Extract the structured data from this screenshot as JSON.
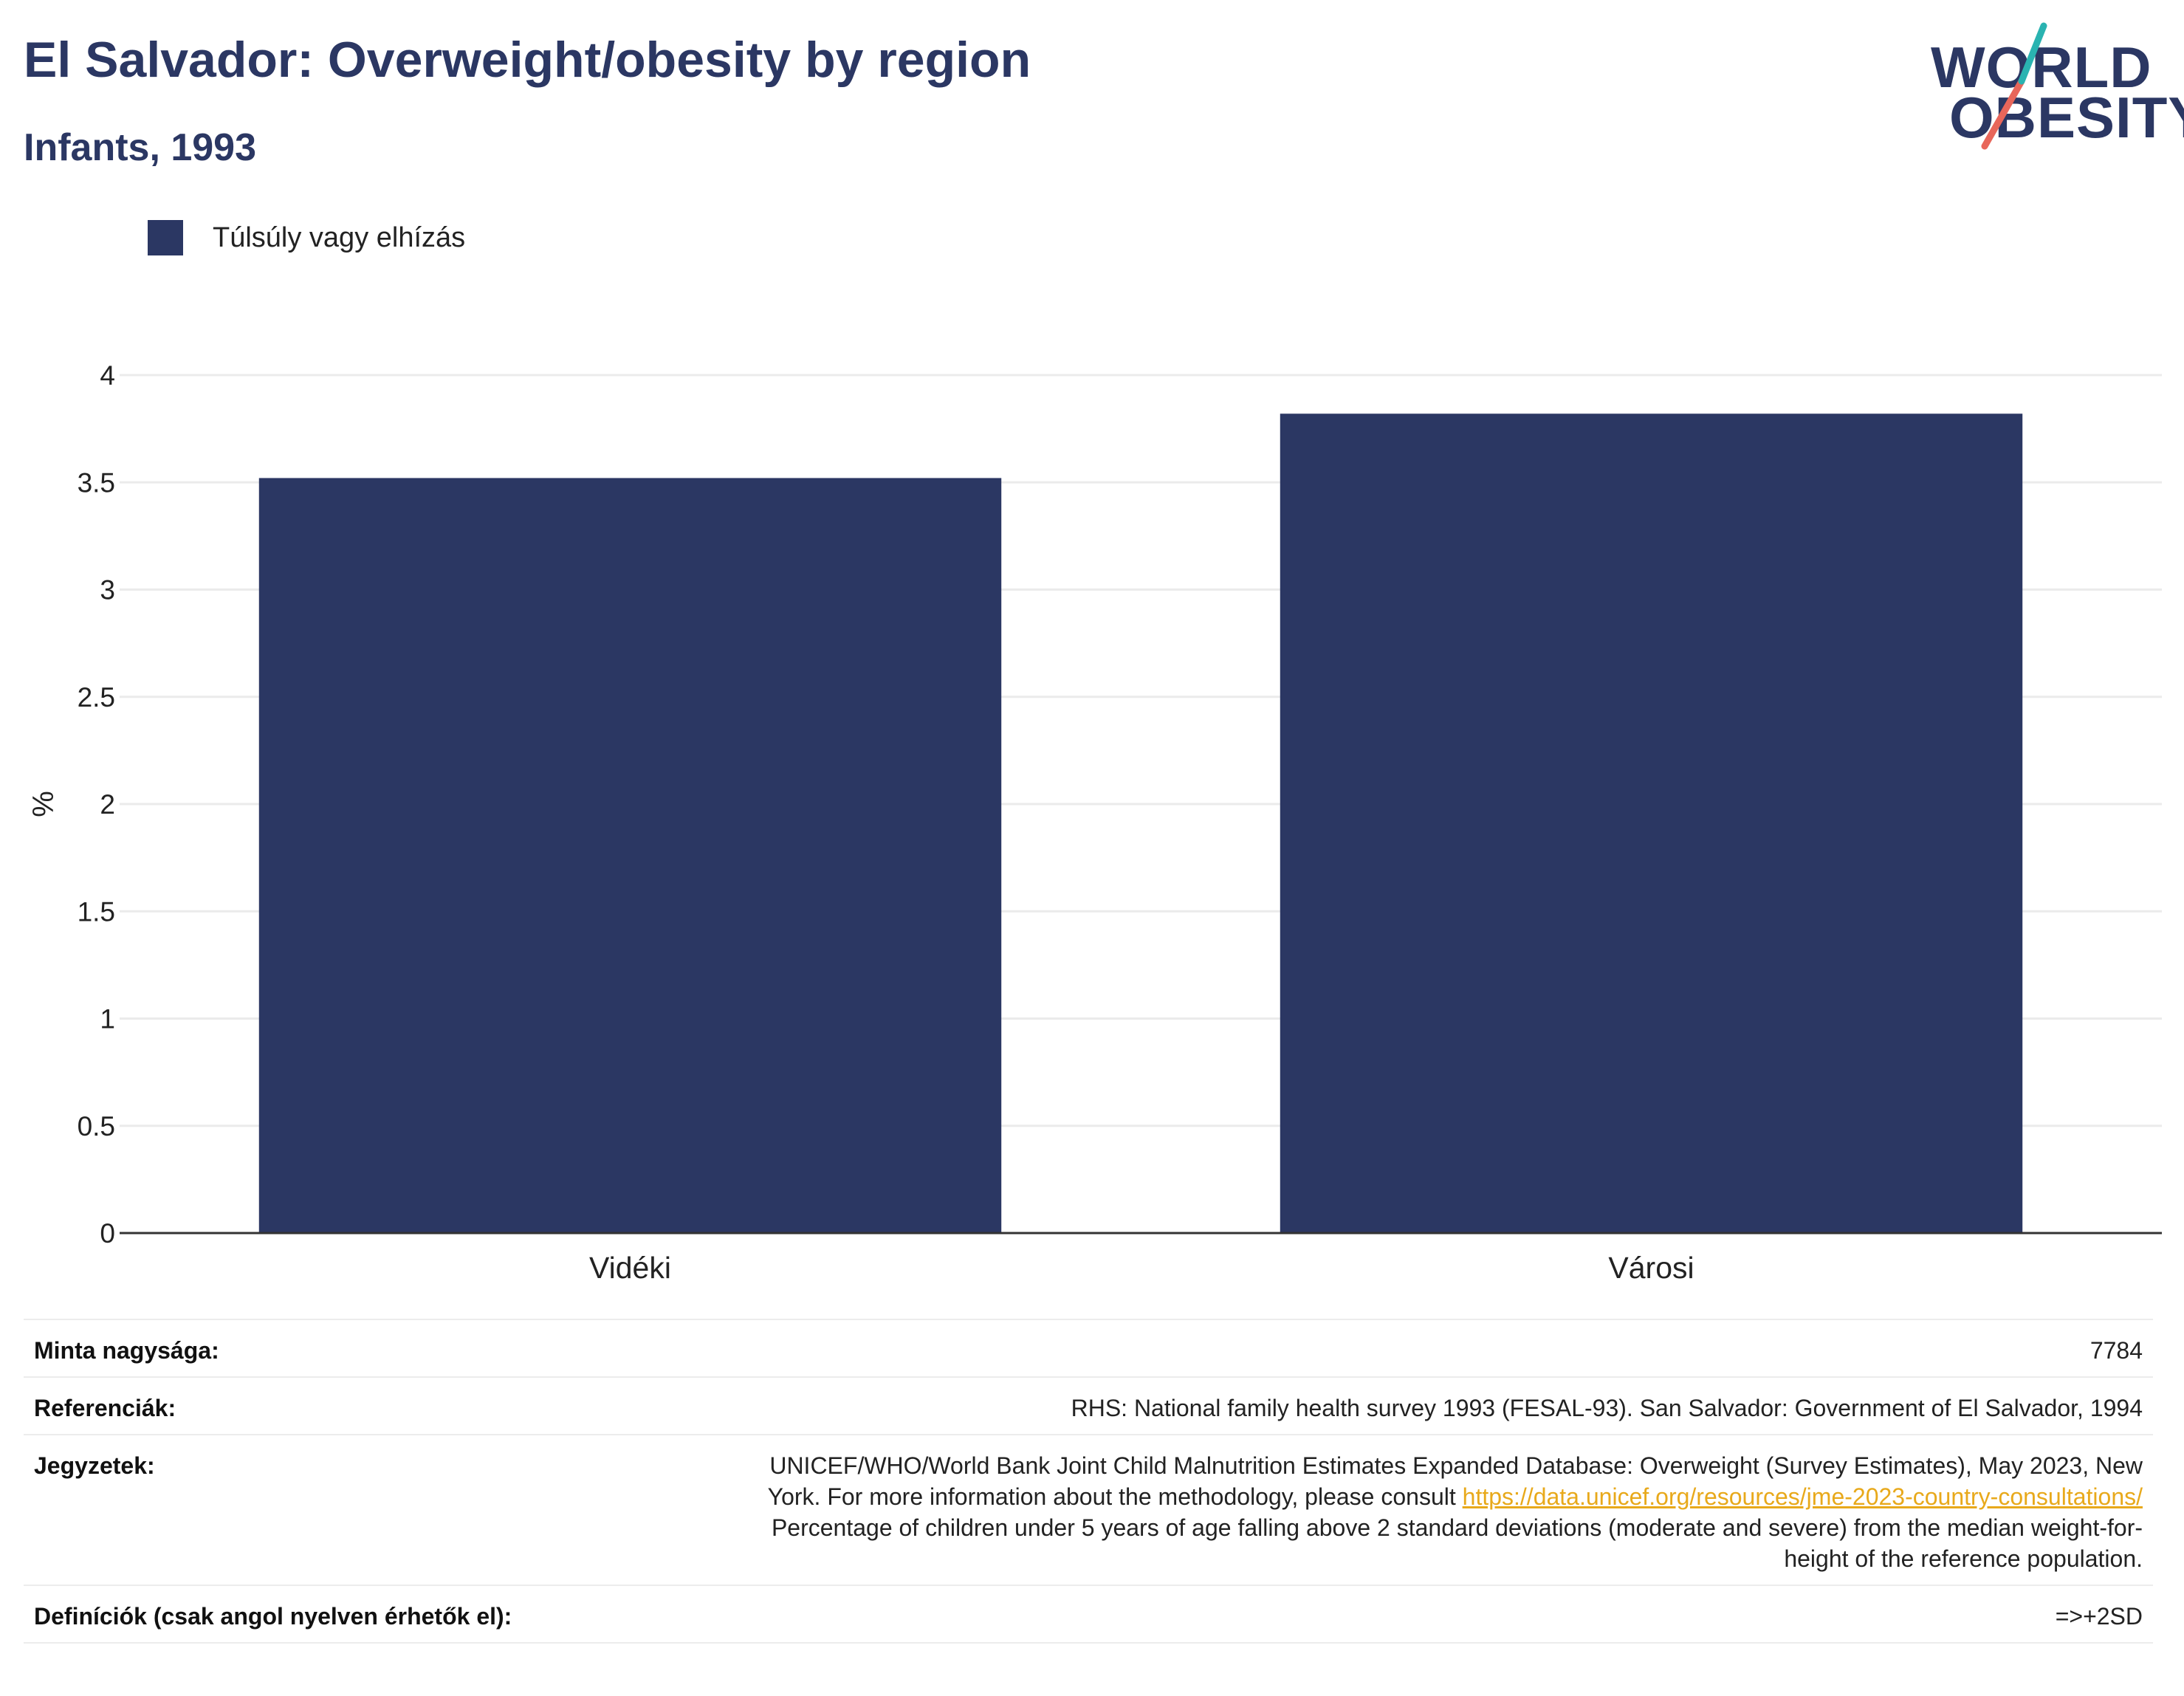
{
  "header": {
    "title": "El Salvador: Overweight/obesity by region",
    "subtitle": "Infants, 1993"
  },
  "logo": {
    "line1": "WORLD",
    "line2": "OBESITY",
    "accent_teal": "#2ab3b1",
    "accent_coral": "#e8665a"
  },
  "chart_data": {
    "type": "bar",
    "categories": [
      "Vidéki",
      "Városi"
    ],
    "series": [
      {
        "name": "Túlsúly vagy elhízás",
        "values": [
          3.52,
          3.82
        ],
        "color": "#2b3763"
      }
    ],
    "ylabel": "%",
    "ylim": [
      0,
      4
    ],
    "yticks": [
      "0",
      "0.5",
      "1",
      "1.5",
      "2",
      "2.5",
      "3",
      "3.5",
      "4"
    ],
    "grid": true,
    "legend_position": "top-left"
  },
  "info": {
    "sample_size_label": "Minta nagysága:",
    "sample_size_value": "7784",
    "references_label": "Referenciák:",
    "references_value": "RHS: National family health survey 1993 (FESAL-93). San Salvador: Government of El Salvador, 1994",
    "notes_label": "Jegyzetek:",
    "notes_line1": "UNICEF/WHO/World Bank Joint Child Malnutrition Estimates Expanded Database: Overweight (Survey Estimates), May 2023, New",
    "notes_line2": "York. For more information about the methodology, please consult",
    "notes_link": "https://data.unicef.org/resources/jme-2023-country-consultations/",
    "notes_line3": "Percentage of children under 5 years of age falling above 2 standard deviations (moderate and severe) from the median weight-for-",
    "notes_line4": "height of the reference population.",
    "definitions_label": "Definíciók (csak angol nyelven érhetők el):",
    "definitions_value": "=>+2SD"
  }
}
